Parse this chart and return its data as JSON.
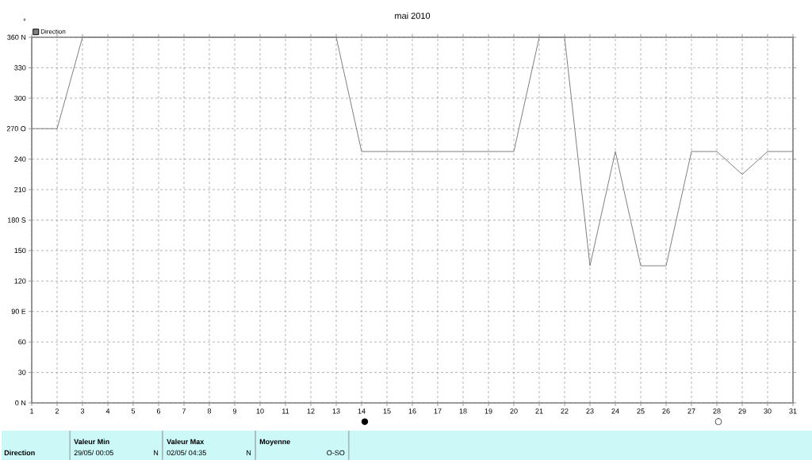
{
  "chart_data": {
    "type": "line",
    "title": "mai 2010",
    "ylabel": "°",
    "x": [
      1,
      2,
      3,
      4,
      5,
      6,
      7,
      8,
      9,
      10,
      11,
      12,
      13,
      14,
      15,
      16,
      17,
      18,
      19,
      20,
      21,
      22,
      23,
      24,
      25,
      26,
      27,
      28,
      29,
      30,
      31
    ],
    "series": [
      {
        "name": "Direction",
        "color": "#808080",
        "values": [
          270,
          270,
          360,
          360,
          360,
          360,
          360,
          360,
          360,
          360,
          360,
          360,
          360,
          247.5,
          247.5,
          247.5,
          247.5,
          247.5,
          247.5,
          247.5,
          360,
          360,
          135,
          247.5,
          135,
          135,
          247.5,
          247.5,
          225,
          247.5,
          247.5
        ]
      }
    ],
    "xlim": [
      1,
      31
    ],
    "ylim": [
      0,
      360
    ],
    "xticks": [
      1,
      2,
      3,
      4,
      5,
      6,
      7,
      8,
      9,
      10,
      11,
      12,
      13,
      14,
      15,
      16,
      17,
      18,
      19,
      20,
      21,
      22,
      23,
      24,
      25,
      26,
      27,
      28,
      29,
      30,
      31
    ],
    "yticks": [
      {
        "value": 0,
        "label": "0 N"
      },
      30,
      60,
      {
        "value": 90,
        "label": "90 E"
      },
      120,
      150,
      {
        "value": 180,
        "label": "180 S"
      },
      210,
      240,
      {
        "value": 270,
        "label": "270 O"
      },
      300,
      330,
      {
        "value": 360,
        "label": "360 N"
      }
    ],
    "grid": true,
    "legend": "top left",
    "marker": "none",
    "line_style": "solid",
    "annotations": [
      "Direction",
      "Valeur Min",
      "29/05/ 00:05",
      "N",
      "Valeur Max",
      "02/05/ 04:35",
      "N",
      "Moyenne",
      "O-SO",
      "●",
      "○"
    ]
  }
}
